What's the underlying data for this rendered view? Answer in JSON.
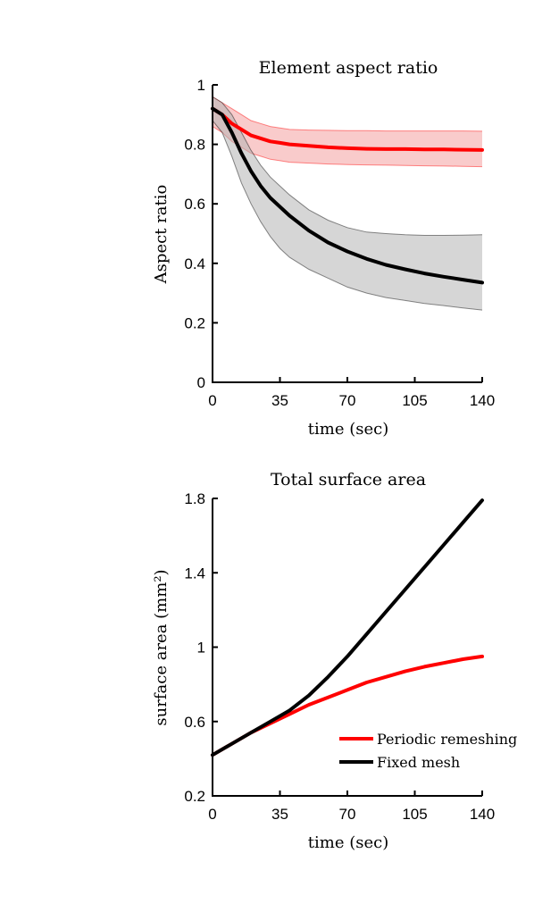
{
  "chart_data": [
    {
      "type": "line",
      "title": "Element aspect ratio",
      "xlabel": "time (sec)",
      "ylabel": "Aspect ratio",
      "xlim": [
        0,
        140
      ],
      "ylim": [
        0,
        1
      ],
      "xticks": [
        "0",
        "35",
        "70",
        "105",
        "140"
      ],
      "yticks": [
        "0",
        "0.2",
        "0.4",
        "0.6",
        "0.8",
        "1"
      ],
      "grid": false,
      "x": [
        0,
        5,
        10,
        15,
        20,
        25,
        30,
        35,
        40,
        50,
        60,
        70,
        80,
        90,
        100,
        110,
        120,
        130,
        140
      ],
      "series": [
        {
          "color": "#ff0000",
          "band_color": "#f4a0a0",
          "values": [
            0.92,
            0.9,
            0.87,
            0.85,
            0.83,
            0.82,
            0.81,
            0.805,
            0.8,
            0.795,
            0.79,
            0.787,
            0.785,
            0.784,
            0.784,
            0.783,
            0.783,
            0.782,
            0.781
          ],
          "upper": [
            0.96,
            0.94,
            0.92,
            0.9,
            0.88,
            0.87,
            0.86,
            0.855,
            0.85,
            0.848,
            0.847,
            0.846,
            0.846,
            0.845,
            0.845,
            0.845,
            0.845,
            0.845,
            0.844
          ],
          "lower": [
            0.86,
            0.84,
            0.81,
            0.79,
            0.77,
            0.76,
            0.75,
            0.745,
            0.74,
            0.737,
            0.734,
            0.732,
            0.731,
            0.73,
            0.729,
            0.728,
            0.727,
            0.726,
            0.725
          ]
        },
        {
          "color": "#000000",
          "band_color": "#b4b4b4",
          "values": [
            0.92,
            0.9,
            0.84,
            0.77,
            0.71,
            0.66,
            0.62,
            0.59,
            0.56,
            0.51,
            0.47,
            0.44,
            0.415,
            0.395,
            0.38,
            0.366,
            0.355,
            0.345,
            0.335
          ],
          "upper": [
            0.96,
            0.94,
            0.9,
            0.84,
            0.78,
            0.73,
            0.69,
            0.66,
            0.63,
            0.58,
            0.545,
            0.52,
            0.505,
            0.5,
            0.496,
            0.494,
            0.494,
            0.495,
            0.496
          ],
          "lower": [
            0.88,
            0.84,
            0.76,
            0.67,
            0.6,
            0.54,
            0.49,
            0.45,
            0.42,
            0.38,
            0.35,
            0.32,
            0.3,
            0.285,
            0.275,
            0.265,
            0.258,
            0.25,
            0.243
          ]
        }
      ]
    },
    {
      "type": "line",
      "title": "Total surface area",
      "xlabel": "time (sec)",
      "ylabel": "surface area (mm²)",
      "xlim": [
        0,
        140
      ],
      "ylim": [
        0.2,
        1.8
      ],
      "xticks": [
        "0",
        "35",
        "70",
        "105",
        "140"
      ],
      "yticks": [
        "0.2",
        "0.6",
        "1",
        "1.4",
        "1.8"
      ],
      "grid": false,
      "legend_position": "bottom-right",
      "x": [
        0,
        10,
        20,
        30,
        40,
        50,
        60,
        70,
        80,
        90,
        100,
        110,
        120,
        130,
        140
      ],
      "series": [
        {
          "name": "Periodic remeshing",
          "color": "#ff0000",
          "values": [
            0.42,
            0.48,
            0.54,
            0.59,
            0.64,
            0.69,
            0.73,
            0.77,
            0.81,
            0.84,
            0.87,
            0.895,
            0.915,
            0.935,
            0.95
          ]
        },
        {
          "name": "Fixed mesh",
          "color": "#000000",
          "values": [
            0.42,
            0.48,
            0.54,
            0.6,
            0.66,
            0.74,
            0.84,
            0.95,
            1.07,
            1.19,
            1.31,
            1.43,
            1.55,
            1.67,
            1.79
          ]
        }
      ]
    }
  ]
}
